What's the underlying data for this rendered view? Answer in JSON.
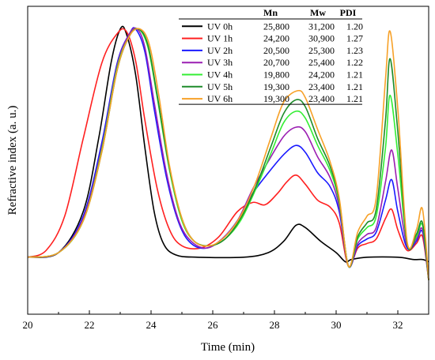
{
  "chart_data": {
    "type": "line",
    "title": "",
    "xlabel": "Time (min)",
    "ylabel": "Refractive index (a. u.)",
    "xlim": [
      20,
      33
    ],
    "ylim": [
      -0.25,
      1.1
    ],
    "xticks": [
      20,
      22,
      24,
      26,
      28,
      30,
      32
    ],
    "grid": false,
    "legend_position": "top-right (table)",
    "legend_table": {
      "headers": [
        "",
        "Mn",
        "Mw",
        "PDI"
      ],
      "rows": [
        {
          "label": "UV 0h",
          "mn": "25,800",
          "mw": "31,200",
          "pdi": "1.20"
        },
        {
          "label": "UV 1h",
          "mn": "24,200",
          "mw": "30,900",
          "pdi": "1.27"
        },
        {
          "label": "UV 2h",
          "mn": "20,500",
          "mw": "25,300",
          "pdi": "1.23"
        },
        {
          "label": "UV 3h",
          "mn": "20,700",
          "mw": "25,400",
          "pdi": "1.22"
        },
        {
          "label": "UV 4h",
          "mn": "19,800",
          "mw": "24,200",
          "pdi": "1.21"
        },
        {
          "label": "UV 5h",
          "mn": "19,300",
          "mw": "23,400",
          "pdi": "1.21"
        },
        {
          "label": "UV 6h",
          "mn": "19,300",
          "mw": "23,400",
          "pdi": "1.21"
        }
      ]
    },
    "series": [
      {
        "name": "UV 0h",
        "color": "#000000",
        "points": [
          [
            20.0,
            0.0
          ],
          [
            21.0,
            0.02
          ],
          [
            21.8,
            0.2
          ],
          [
            22.3,
            0.52
          ],
          [
            22.7,
            0.85
          ],
          [
            23.0,
            1.0
          ],
          [
            23.2,
            0.98
          ],
          [
            23.5,
            0.8
          ],
          [
            23.8,
            0.48
          ],
          [
            24.1,
            0.2
          ],
          [
            24.4,
            0.06
          ],
          [
            24.8,
            0.01
          ],
          [
            25.5,
            0.0
          ],
          [
            27.0,
            0.0
          ],
          [
            27.8,
            0.02
          ],
          [
            28.3,
            0.07
          ],
          [
            28.7,
            0.14
          ],
          [
            29.0,
            0.13
          ],
          [
            29.5,
            0.07
          ],
          [
            30.0,
            0.02
          ],
          [
            30.3,
            -0.02
          ],
          [
            30.5,
            -0.01
          ],
          [
            31.0,
            0.0
          ],
          [
            32.0,
            0.0
          ],
          [
            32.5,
            -0.01
          ],
          [
            32.8,
            -0.01
          ],
          [
            33.0,
            -0.02
          ]
        ]
      },
      {
        "name": "UV 1h",
        "color": "#ff2020",
        "points": [
          [
            20.0,
            0.0
          ],
          [
            20.6,
            0.03
          ],
          [
            21.2,
            0.18
          ],
          [
            21.8,
            0.52
          ],
          [
            22.4,
            0.85
          ],
          [
            22.9,
            0.98
          ],
          [
            23.2,
            0.99
          ],
          [
            23.5,
            0.86
          ],
          [
            23.8,
            0.6
          ],
          [
            24.2,
            0.3
          ],
          [
            24.6,
            0.12
          ],
          [
            25.0,
            0.05
          ],
          [
            25.6,
            0.04
          ],
          [
            26.2,
            0.09
          ],
          [
            26.8,
            0.2
          ],
          [
            27.3,
            0.24
          ],
          [
            27.7,
            0.23
          ],
          [
            28.1,
            0.28
          ],
          [
            28.4,
            0.33
          ],
          [
            28.7,
            0.36
          ],
          [
            29.0,
            0.32
          ],
          [
            29.4,
            0.25
          ],
          [
            29.8,
            0.22
          ],
          [
            30.1,
            0.15
          ],
          [
            30.4,
            -0.04
          ],
          [
            30.7,
            0.04
          ],
          [
            31.0,
            0.06
          ],
          [
            31.3,
            0.08
          ],
          [
            31.6,
            0.17
          ],
          [
            31.8,
            0.21
          ],
          [
            32.0,
            0.12
          ],
          [
            32.3,
            0.03
          ],
          [
            32.6,
            0.06
          ],
          [
            32.8,
            0.09
          ],
          [
            33.0,
            -0.1
          ]
        ]
      },
      {
        "name": "UV 2h",
        "color": "#1a1aff",
        "points": [
          [
            20.0,
            0.0
          ],
          [
            21.0,
            0.02
          ],
          [
            21.8,
            0.18
          ],
          [
            22.4,
            0.5
          ],
          [
            22.9,
            0.85
          ],
          [
            23.3,
            0.98
          ],
          [
            23.5,
            1.0
          ],
          [
            23.8,
            0.9
          ],
          [
            24.1,
            0.65
          ],
          [
            24.5,
            0.35
          ],
          [
            24.9,
            0.15
          ],
          [
            25.3,
            0.06
          ],
          [
            25.8,
            0.04
          ],
          [
            26.3,
            0.08
          ],
          [
            26.8,
            0.16
          ],
          [
            27.3,
            0.28
          ],
          [
            27.8,
            0.37
          ],
          [
            28.3,
            0.45
          ],
          [
            28.7,
            0.49
          ],
          [
            29.0,
            0.46
          ],
          [
            29.4,
            0.37
          ],
          [
            29.8,
            0.31
          ],
          [
            30.1,
            0.2
          ],
          [
            30.4,
            -0.04
          ],
          [
            30.7,
            0.05
          ],
          [
            31.0,
            0.08
          ],
          [
            31.3,
            0.11
          ],
          [
            31.6,
            0.25
          ],
          [
            31.8,
            0.34
          ],
          [
            32.0,
            0.2
          ],
          [
            32.3,
            0.04
          ],
          [
            32.6,
            0.07
          ],
          [
            32.8,
            0.11
          ],
          [
            33.0,
            -0.1
          ]
        ]
      },
      {
        "name": "UV 3h",
        "color": "#9b1fb2",
        "points": [
          [
            20.0,
            0.0
          ],
          [
            21.0,
            0.02
          ],
          [
            21.8,
            0.17
          ],
          [
            22.4,
            0.48
          ],
          [
            22.9,
            0.84
          ],
          [
            23.3,
            0.98
          ],
          [
            23.55,
            1.0
          ],
          [
            23.8,
            0.92
          ],
          [
            24.1,
            0.68
          ],
          [
            24.5,
            0.37
          ],
          [
            24.9,
            0.16
          ],
          [
            25.3,
            0.07
          ],
          [
            25.8,
            0.04
          ],
          [
            26.3,
            0.08
          ],
          [
            26.8,
            0.16
          ],
          [
            27.3,
            0.3
          ],
          [
            27.8,
            0.42
          ],
          [
            28.3,
            0.53
          ],
          [
            28.7,
            0.57
          ],
          [
            29.0,
            0.55
          ],
          [
            29.4,
            0.44
          ],
          [
            29.8,
            0.35
          ],
          [
            30.1,
            0.22
          ],
          [
            30.4,
            -0.04
          ],
          [
            30.7,
            0.06
          ],
          [
            31.0,
            0.1
          ],
          [
            31.3,
            0.13
          ],
          [
            31.6,
            0.33
          ],
          [
            31.8,
            0.47
          ],
          [
            32.0,
            0.3
          ],
          [
            32.3,
            0.05
          ],
          [
            32.6,
            0.08
          ],
          [
            32.8,
            0.12
          ],
          [
            33.0,
            -0.1
          ]
        ]
      },
      {
        "name": "UV 4h",
        "color": "#33ee33",
        "points": [
          [
            20.0,
            0.0
          ],
          [
            21.0,
            0.02
          ],
          [
            21.8,
            0.16
          ],
          [
            22.4,
            0.47
          ],
          [
            22.9,
            0.83
          ],
          [
            23.3,
            0.97
          ],
          [
            23.6,
            1.0
          ],
          [
            23.9,
            0.92
          ],
          [
            24.2,
            0.7
          ],
          [
            24.6,
            0.38
          ],
          [
            25.0,
            0.16
          ],
          [
            25.4,
            0.07
          ],
          [
            25.9,
            0.05
          ],
          [
            26.4,
            0.08
          ],
          [
            26.9,
            0.16
          ],
          [
            27.4,
            0.3
          ],
          [
            27.9,
            0.46
          ],
          [
            28.3,
            0.59
          ],
          [
            28.7,
            0.64
          ],
          [
            29.0,
            0.61
          ],
          [
            29.4,
            0.49
          ],
          [
            29.8,
            0.38
          ],
          [
            30.1,
            0.24
          ],
          [
            30.4,
            -0.04
          ],
          [
            30.7,
            0.08
          ],
          [
            31.0,
            0.13
          ],
          [
            31.3,
            0.18
          ],
          [
            31.6,
            0.48
          ],
          [
            31.75,
            0.71
          ],
          [
            32.0,
            0.45
          ],
          [
            32.3,
            0.06
          ],
          [
            32.6,
            0.09
          ],
          [
            32.8,
            0.14
          ],
          [
            33.0,
            -0.1
          ]
        ]
      },
      {
        "name": "UV 5h",
        "color": "#1e8c2a",
        "points": [
          [
            20.0,
            0.0
          ],
          [
            21.0,
            0.02
          ],
          [
            21.8,
            0.16
          ],
          [
            22.4,
            0.46
          ],
          [
            22.9,
            0.82
          ],
          [
            23.3,
            0.97
          ],
          [
            23.6,
            1.0
          ],
          [
            23.9,
            0.93
          ],
          [
            24.2,
            0.71
          ],
          [
            24.6,
            0.39
          ],
          [
            25.0,
            0.17
          ],
          [
            25.4,
            0.07
          ],
          [
            25.9,
            0.05
          ],
          [
            26.4,
            0.08
          ],
          [
            26.9,
            0.17
          ],
          [
            27.4,
            0.31
          ],
          [
            27.9,
            0.49
          ],
          [
            28.3,
            0.63
          ],
          [
            28.7,
            0.69
          ],
          [
            29.0,
            0.66
          ],
          [
            29.4,
            0.52
          ],
          [
            29.8,
            0.4
          ],
          [
            30.1,
            0.25
          ],
          [
            30.4,
            -0.04
          ],
          [
            30.7,
            0.09
          ],
          [
            31.0,
            0.15
          ],
          [
            31.3,
            0.21
          ],
          [
            31.6,
            0.6
          ],
          [
            31.75,
            0.87
          ],
          [
            32.0,
            0.55
          ],
          [
            32.3,
            0.06
          ],
          [
            32.6,
            0.1
          ],
          [
            32.8,
            0.15
          ],
          [
            33.0,
            -0.1
          ]
        ]
      },
      {
        "name": "UV 6h",
        "color": "#f7a128",
        "points": [
          [
            20.0,
            0.0
          ],
          [
            21.0,
            0.02
          ],
          [
            21.8,
            0.16
          ],
          [
            22.4,
            0.46
          ],
          [
            22.9,
            0.82
          ],
          [
            23.3,
            0.97
          ],
          [
            23.65,
            1.0
          ],
          [
            23.95,
            0.93
          ],
          [
            24.25,
            0.71
          ],
          [
            24.6,
            0.4
          ],
          [
            25.0,
            0.17
          ],
          [
            25.4,
            0.07
          ],
          [
            25.9,
            0.05
          ],
          [
            26.4,
            0.09
          ],
          [
            26.9,
            0.18
          ],
          [
            27.4,
            0.33
          ],
          [
            27.9,
            0.53
          ],
          [
            28.3,
            0.68
          ],
          [
            28.75,
            0.73
          ],
          [
            29.0,
            0.7
          ],
          [
            29.4,
            0.56
          ],
          [
            29.8,
            0.42
          ],
          [
            30.1,
            0.26
          ],
          [
            30.4,
            -0.04
          ],
          [
            30.7,
            0.11
          ],
          [
            31.0,
            0.18
          ],
          [
            31.3,
            0.26
          ],
          [
            31.6,
            0.78
          ],
          [
            31.75,
            0.99
          ],
          [
            32.0,
            0.65
          ],
          [
            32.3,
            0.07
          ],
          [
            32.6,
            0.12
          ],
          [
            32.8,
            0.21
          ],
          [
            33.0,
            -0.1
          ]
        ]
      }
    ]
  }
}
